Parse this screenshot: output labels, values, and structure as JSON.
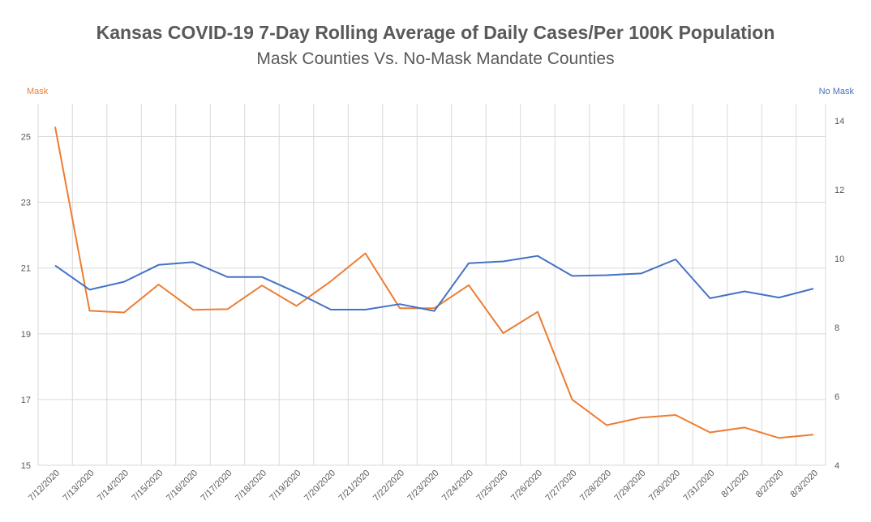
{
  "chart_data": {
    "type": "line",
    "title": "Kansas COVID-19 7-Day Rolling Average of Daily Cases/Per 100K Population",
    "subtitle": "Mask Counties Vs. No-Mask Mandate Counties",
    "left_axis_label": "Mask",
    "right_axis_label": "No Mask",
    "categories": [
      "7/12/2020",
      "7/13/2020",
      "7/14/2020",
      "7/15/2020",
      "7/16/2020",
      "7/17/2020",
      "7/18/2020",
      "7/19/2020",
      "7/20/2020",
      "7/21/2020",
      "7/22/2020",
      "7/23/2020",
      "7/24/2020",
      "7/25/2020",
      "7/26/2020",
      "7/27/2020",
      "7/28/2020",
      "7/29/2020",
      "7/30/2020",
      "7/31/2020",
      "8/1/2020",
      "8/2/2020",
      "8/3/2020"
    ],
    "left_ylim": [
      15,
      26
    ],
    "left_ticks": [
      15,
      17,
      19,
      21,
      23,
      25
    ],
    "right_ylim": [
      4,
      14.5
    ],
    "right_ticks": [
      4,
      6,
      8,
      10,
      12,
      14
    ],
    "grid": true,
    "series": [
      {
        "name": "Mask",
        "axis": "left",
        "color": "#ED7D31",
        "values": [
          25.3,
          19.7,
          19.65,
          20.5,
          19.73,
          19.75,
          20.47,
          19.85,
          20.6,
          21.45,
          19.78,
          19.78,
          20.48,
          19.02,
          19.67,
          17.0,
          16.22,
          16.45,
          16.53,
          16.0,
          16.15,
          15.83,
          15.93
        ]
      },
      {
        "name": "No Mask",
        "axis": "right",
        "color": "#4472C4",
        "values": [
          9.8,
          9.1,
          9.33,
          9.82,
          9.9,
          9.47,
          9.47,
          9.02,
          8.52,
          8.52,
          8.68,
          8.48,
          9.87,
          9.92,
          10.08,
          9.5,
          9.52,
          9.57,
          9.98,
          8.85,
          9.05,
          8.87,
          9.13
        ]
      }
    ]
  }
}
